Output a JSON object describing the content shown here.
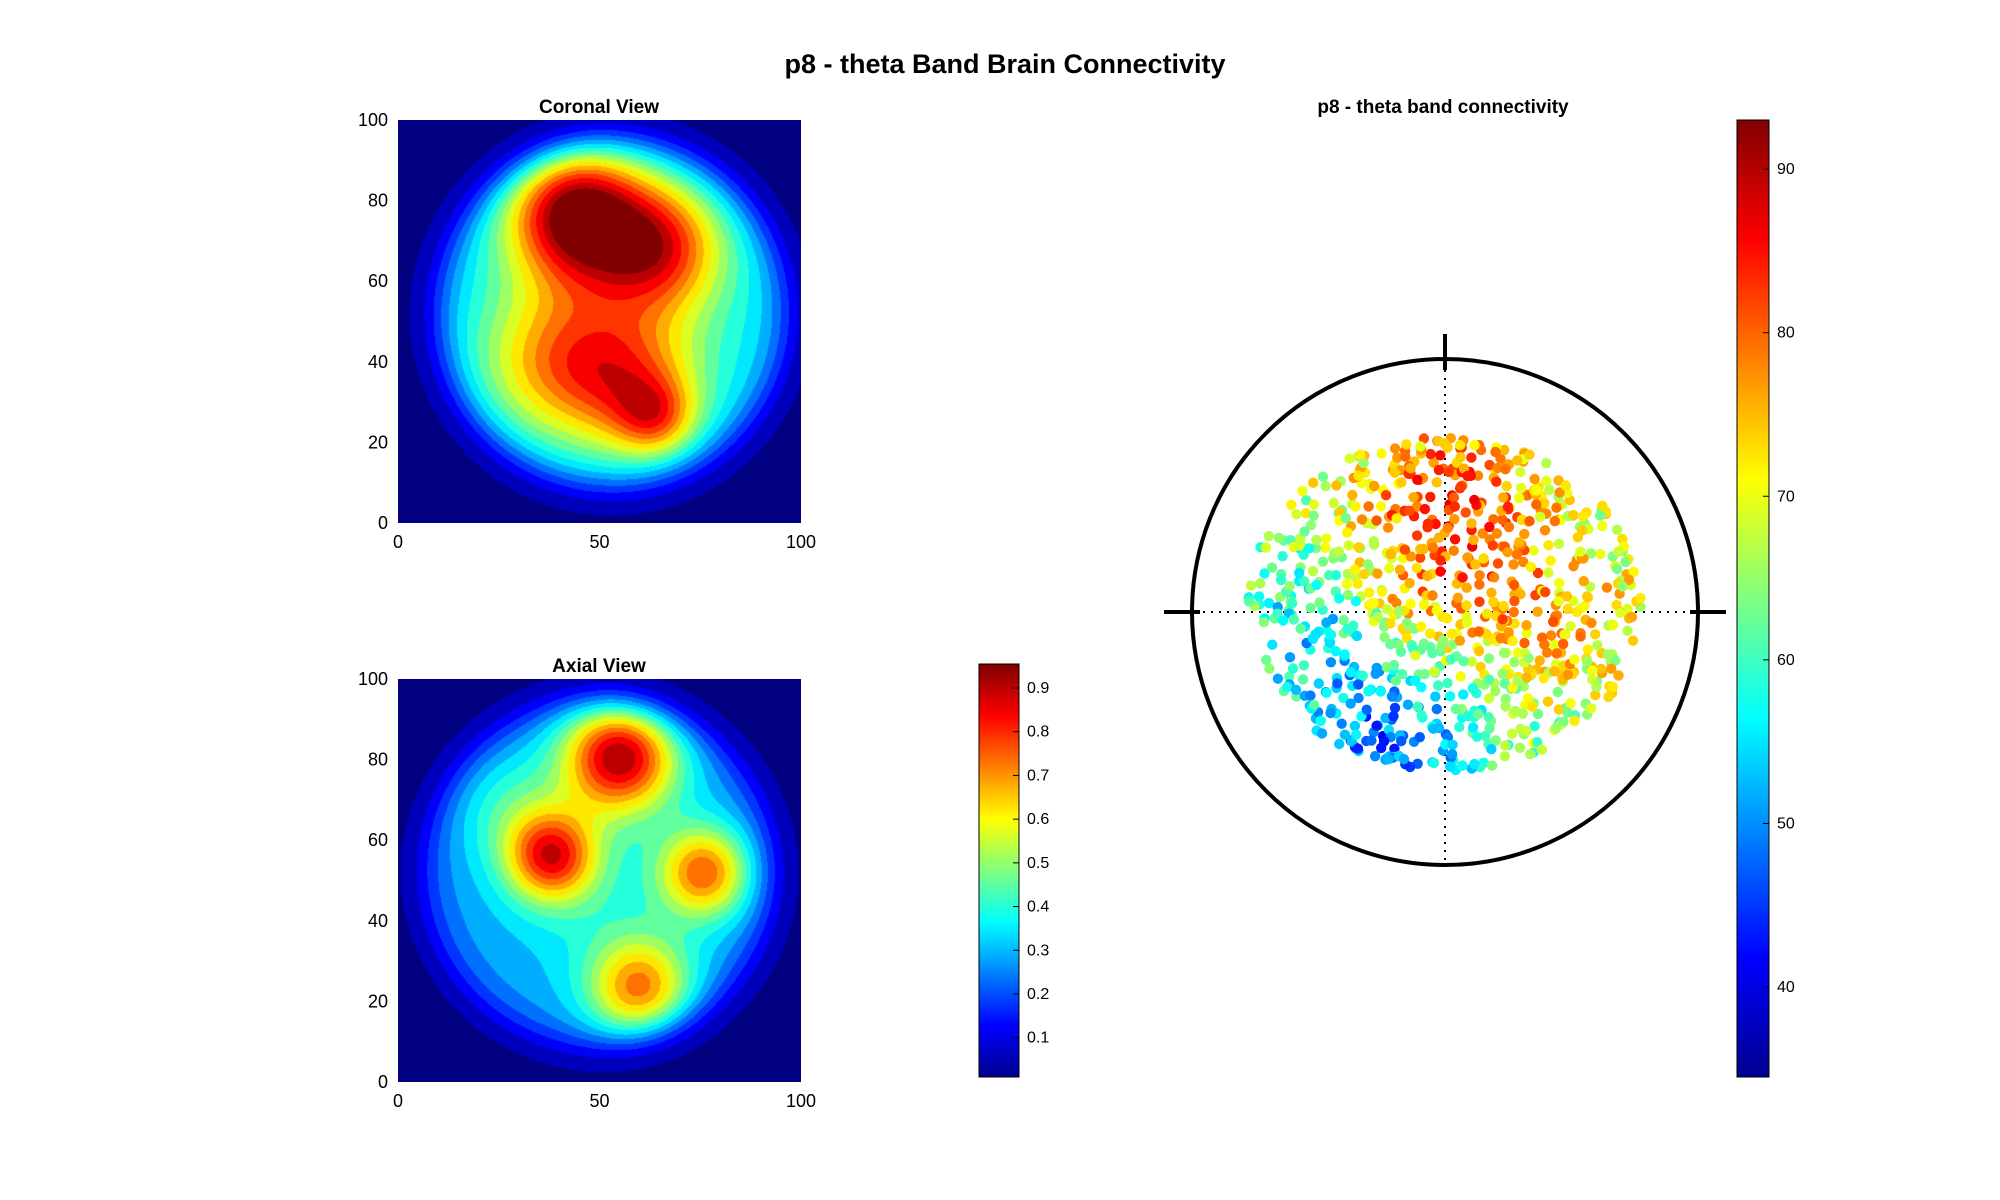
{
  "chart_data": [
    {
      "type": "heatmap",
      "title": "Coronal View",
      "xlabel": "",
      "ylabel": "",
      "xlim": [
        0,
        100
      ],
      "ylim": [
        0,
        100
      ],
      "xticks": [
        "0",
        "50",
        "100"
      ],
      "yticks": [
        "0",
        "20",
        "40",
        "60",
        "80",
        "100"
      ],
      "colormap": "jet",
      "clim": [
        0,
        0.95
      ],
      "background_value": 0.02,
      "envelope": {
        "center": [
          53,
          52
        ],
        "radius": 43,
        "falloff": 13,
        "base": 0.34
      },
      "peaks": [
        {
          "x": 44,
          "y": 77,
          "value": 0.6,
          "spread": 12
        },
        {
          "x": 65,
          "y": 69,
          "value": 0.38,
          "spread": 11
        },
        {
          "x": 38,
          "y": 40,
          "value": 0.28,
          "spread": 13
        },
        {
          "x": 57,
          "y": 34,
          "value": 0.3,
          "spread": 12
        },
        {
          "x": 64,
          "y": 26,
          "value": 0.26,
          "spread": 7
        },
        {
          "x": 57,
          "y": 55,
          "value": 0.14,
          "spread": 16
        }
      ]
    },
    {
      "type": "heatmap",
      "title": "Axial View",
      "xlabel": "",
      "ylabel": "",
      "xlim": [
        0,
        100
      ],
      "ylim": [
        0,
        100
      ],
      "xticks": [
        "0",
        "50",
        "100"
      ],
      "yticks": [
        "0",
        "20",
        "40",
        "60",
        "80",
        "100"
      ],
      "colormap": "jet",
      "clim": [
        0,
        0.95
      ],
      "background_value": 0.02,
      "envelope": {
        "center": [
          50,
          52
        ],
        "radius": 43,
        "falloff": 13,
        "base": 0.28
      },
      "peaks": [
        {
          "x": 55,
          "y": 81,
          "value": 0.62,
          "spread": 10
        },
        {
          "x": 38,
          "y": 56,
          "value": 0.5,
          "spread": 8
        },
        {
          "x": 76,
          "y": 52,
          "value": 0.44,
          "spread": 8
        },
        {
          "x": 60,
          "y": 23,
          "value": 0.42,
          "spread": 9
        },
        {
          "x": 28,
          "y": 68,
          "value": 0.12,
          "spread": 10
        },
        {
          "x": 50,
          "y": 45,
          "value": 0.08,
          "spread": 15
        }
      ],
      "colorbar": {
        "ticks": [
          "0.1",
          "0.2",
          "0.3",
          "0.4",
          "0.5",
          "0.6",
          "0.7",
          "0.8",
          "0.9"
        ],
        "range": [
          0.01,
          0.955
        ]
      }
    },
    {
      "type": "scatter",
      "title": "p8 - theta band connectivity",
      "colormap": "jet",
      "clim": [
        34.5,
        93
      ],
      "colorbar": {
        "ticks": [
          "40",
          "50",
          "60",
          "70",
          "80",
          "90"
        ]
      },
      "head_outline": "circle with crosshair",
      "points_region": {
        "center": [
          0,
          0.03
        ],
        "rx": 0.78,
        "ry": 0.66
      },
      "point_count": 900,
      "value_field": [
        {
          "x": 0.0,
          "y": 0.45,
          "value": 14,
          "spread": 0.25
        },
        {
          "x": -0.15,
          "y": 0.05,
          "value": 10,
          "spread": 0.22
        },
        {
          "x": 0.4,
          "y": 0.0,
          "value": 8,
          "spread": 0.25
        },
        {
          "x": -0.45,
          "y": -0.1,
          "value": -14,
          "spread": 0.28
        },
        {
          "x": -0.2,
          "y": -0.55,
          "value": -16,
          "spread": 0.22
        },
        {
          "x": 0.2,
          "y": -0.45,
          "value": -4,
          "spread": 0.2
        }
      ],
      "value_base": 67
    }
  ],
  "figure": {
    "suptitle": "p8 - theta Band Brain Connectivity"
  }
}
